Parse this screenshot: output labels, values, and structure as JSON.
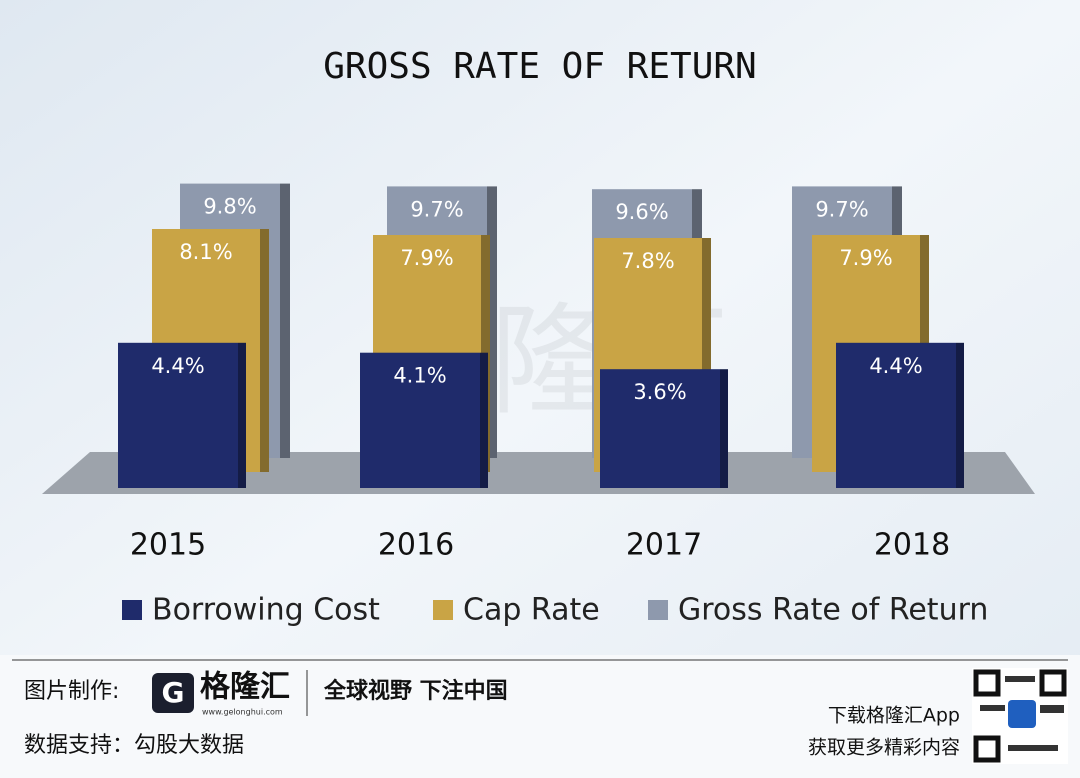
{
  "chart_data": {
    "type": "bar",
    "title": "GROSS RATE OF RETURN",
    "categories": [
      "2015",
      "2016",
      "2017",
      "2018"
    ],
    "series": [
      {
        "name": "Borrowing Cost",
        "color": "#1f2b6b",
        "values": [
          4.4,
          4.1,
          3.6,
          4.4
        ],
        "value_labels": [
          "4.4%",
          "4.1%",
          "3.6%",
          "4.4%"
        ]
      },
      {
        "name": "Cap Rate",
        "color": "#c9a445",
        "values": [
          8.1,
          7.9,
          7.8,
          7.9
        ],
        "value_labels": [
          "8.1%",
          "7.9%",
          "7.8%",
          "7.9%"
        ]
      },
      {
        "name": "Gross Rate of Return",
        "color": "#8e99ad",
        "values": [
          9.8,
          9.7,
          9.6,
          9.7
        ],
        "value_labels": [
          "9.8%",
          "9.7%",
          "9.6%",
          "9.7%"
        ]
      }
    ]
  },
  "watermark": "格隆汇",
  "footer": {
    "maker_label": "图片制作:",
    "brand": "格隆汇",
    "brand_url": "www.gelonghui.com",
    "slogan": "全球视野 下注中国",
    "source": "数据支持：勾股大数据",
    "app_line1": "下载格隆汇App",
    "app_line2": "获取更多精彩内容"
  }
}
